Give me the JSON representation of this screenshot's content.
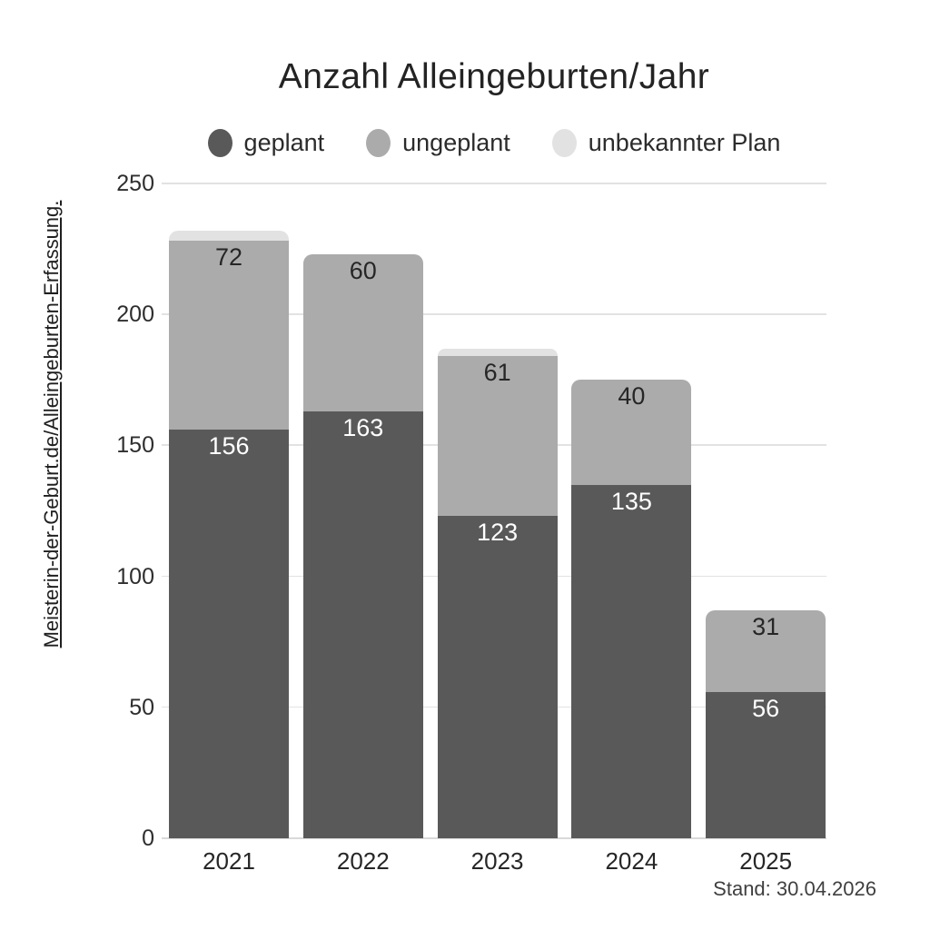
{
  "chart": {
    "title": "Anzahl Alleingeburten/Jahr",
    "source": "Meisterin-der-Geburt.de/Alleingeburten-Erfassung.",
    "footnote": "Stand: 30.04.2026"
  },
  "legend": {
    "items": [
      {
        "label": "geplant",
        "color": "#595959"
      },
      {
        "label": "ungeplant",
        "color": "#ababab"
      },
      {
        "label": "unbekannter Plan",
        "color": "#e2e2e2"
      }
    ]
  },
  "chart_data": {
    "type": "bar",
    "stacked": true,
    "title": "Anzahl Alleingeburten/Jahr",
    "categories": [
      "2021",
      "2022",
      "2023",
      "2024",
      "2025"
    ],
    "series": [
      {
        "name": "geplant",
        "color": "#595959",
        "label_color": "#ffffff",
        "show_labels": true,
        "values": [
          156,
          163,
          123,
          135,
          56
        ]
      },
      {
        "name": "ungeplant",
        "color": "#ababab",
        "label_color": "#262626",
        "show_labels": true,
        "values": [
          72,
          60,
          61,
          40,
          31
        ]
      },
      {
        "name": "unbekannter Plan",
        "color": "#e2e2e2",
        "label_color": "#262626",
        "show_labels": false,
        "values": [
          4,
          0,
          3,
          0,
          0
        ]
      }
    ],
    "xlabel": "",
    "ylabel": "",
    "ylim": [
      0,
      250
    ],
    "yticks": [
      0,
      50,
      100,
      150,
      200,
      250
    ],
    "grid": true,
    "legend_position": "top"
  },
  "colors": {
    "background": "#ffffff",
    "gridline": "#e2e2e2",
    "baseline": "#d9d9d9",
    "tick_label": "#2e2e2e",
    "title": "#232323"
  }
}
